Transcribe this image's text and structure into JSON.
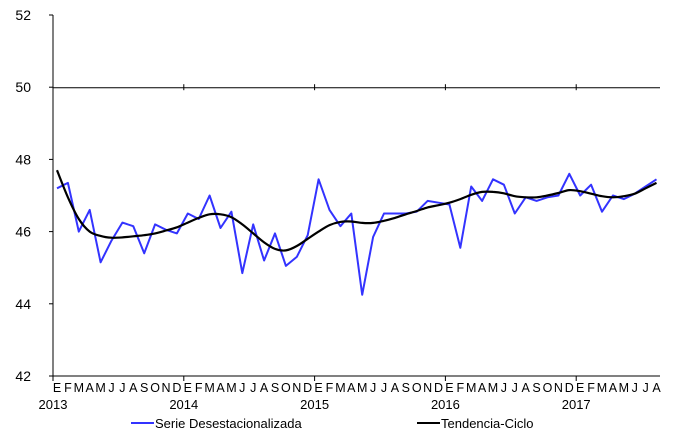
{
  "chart_data": {
    "type": "line",
    "title": "",
    "xlabel": "",
    "ylabel": "",
    "ylim": [
      42,
      52
    ],
    "yticks": [
      "42",
      "44",
      "46",
      "48",
      "50",
      "52"
    ],
    "year_labels": [
      "2013",
      "2014",
      "2015",
      "2016",
      "2017"
    ],
    "month_letters": [
      "E",
      "F",
      "M",
      "A",
      "M",
      "J",
      "J",
      "A",
      "S",
      "O",
      "N",
      "D",
      "E",
      "F",
      "M",
      "A",
      "M",
      "J",
      "J",
      "A",
      "S",
      "O",
      "N",
      "D",
      "E",
      "F",
      "M",
      "A",
      "M",
      "J",
      "J",
      "A",
      "S",
      "O",
      "N",
      "D",
      "E",
      "F",
      "M",
      "A",
      "M",
      "J",
      "J",
      "A",
      "S",
      "O",
      "N",
      "D",
      "E",
      "F",
      "M",
      "A",
      "M",
      "J",
      "J",
      "A"
    ],
    "grid": "horizontal at 50",
    "legend_position": "bottom",
    "series": [
      {
        "name": "Serie Desestacionalizada",
        "color": "#3333ff",
        "values": [
          47.2,
          47.35,
          46.0,
          46.6,
          45.15,
          45.75,
          46.25,
          46.15,
          45.4,
          46.2,
          46.05,
          45.95,
          46.5,
          46.35,
          47.0,
          46.1,
          46.55,
          44.85,
          46.2,
          45.2,
          45.95,
          45.05,
          45.3,
          45.9,
          47.45,
          46.6,
          46.15,
          46.5,
          44.25,
          45.85,
          46.5,
          46.5,
          46.5,
          46.55,
          46.85,
          46.8,
          46.75,
          45.55,
          47.25,
          46.85,
          47.45,
          47.3,
          46.5,
          46.95,
          46.85,
          46.95,
          47.0,
          47.6,
          47.0,
          47.3,
          46.55,
          47.0,
          46.9,
          47.05,
          47.25,
          47.45
        ]
      },
      {
        "name": "Tendencia-Ciclo",
        "color": "#000000",
        "values": [
          47.7,
          46.95,
          46.35,
          46.0,
          45.88,
          45.83,
          45.84,
          45.87,
          45.9,
          45.95,
          46.03,
          46.12,
          46.25,
          46.38,
          46.48,
          46.48,
          46.4,
          46.2,
          45.95,
          45.7,
          45.52,
          45.48,
          45.6,
          45.8,
          46.0,
          46.18,
          46.27,
          46.28,
          46.24,
          46.24,
          46.3,
          46.38,
          46.48,
          46.57,
          46.67,
          46.73,
          46.8,
          46.9,
          47.02,
          47.1,
          47.1,
          47.06,
          46.98,
          46.95,
          46.95,
          47.0,
          47.07,
          47.15,
          47.12,
          47.05,
          46.98,
          46.95,
          46.98,
          47.05,
          47.2,
          47.35
        ]
      }
    ]
  }
}
